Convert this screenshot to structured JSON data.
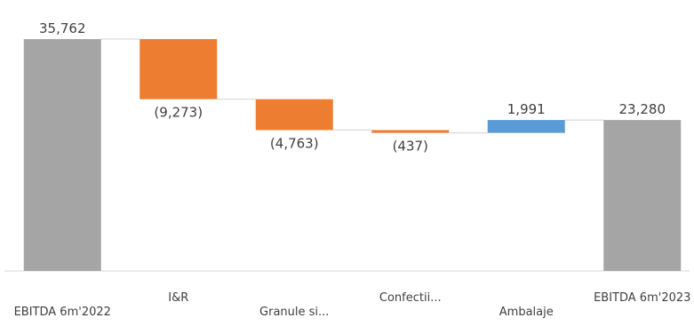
{
  "chart_data": {
    "type": "waterfall",
    "categories": [
      "EBITDA 6m'2022",
      "I&R",
      "Granule si...",
      "Confectii...",
      "Ambalaje",
      "EBITDA 6m'2023"
    ],
    "values": [
      35762,
      -9273,
      -4763,
      -437,
      1991,
      23280
    ],
    "kinds": [
      "total",
      "delta",
      "delta",
      "delta",
      "delta",
      "total"
    ],
    "data_labels": [
      "35,762",
      "(9,273)",
      "(4,763)",
      "(437)",
      "1,991",
      "23,280"
    ],
    "colors": {
      "total": "#a5a5a5",
      "decrease": "#ed7d31",
      "increase": "#5b9bd5",
      "connector": "#d9d9d9",
      "axis": "#d9d9d9",
      "text": "#404040"
    },
    "ylim": [
      0,
      35762
    ],
    "grid": false,
    "legend": "none"
  }
}
